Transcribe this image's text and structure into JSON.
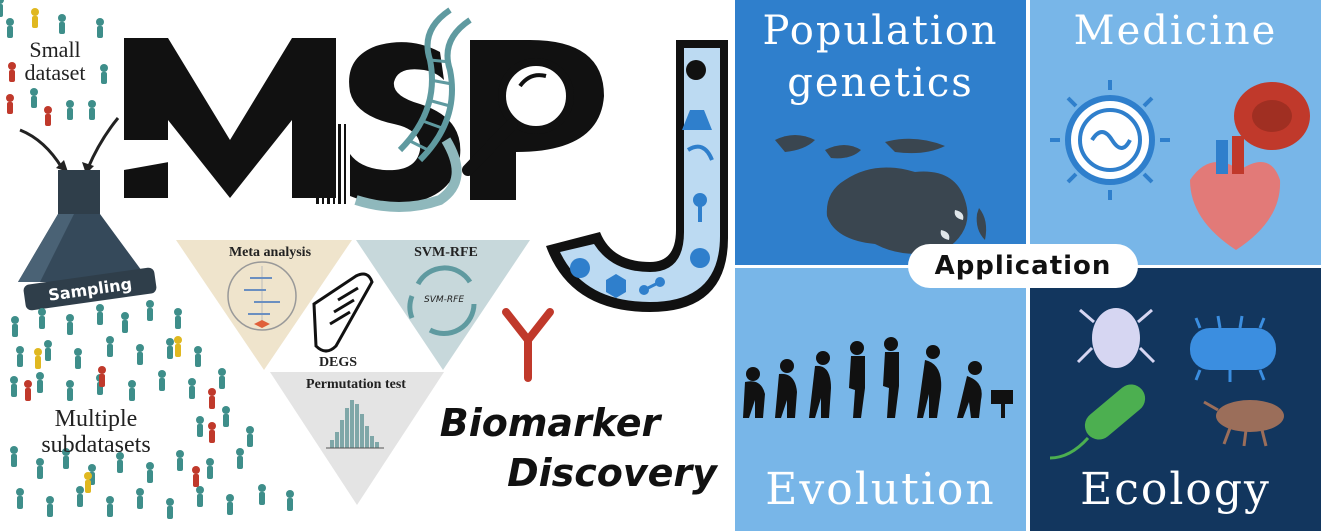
{
  "left": {
    "small_dataset": [
      "Small",
      "dataset"
    ],
    "sampling": "Sampling",
    "multiple_subdatasets": [
      "Multiple",
      "subdatasets"
    ]
  },
  "logo": {
    "letters": "MSPJ"
  },
  "methods": {
    "meta_analysis": "Meta analysis",
    "svm_rfe": "SVM-RFE",
    "svm_rfe_small": "SVM-RFE",
    "degs": "DEGS",
    "permutation_test": "Permutation test"
  },
  "biomarker": [
    "Biomarker",
    "Discovery"
  ],
  "application": {
    "center_label": "Application",
    "quadrants": [
      {
        "title": [
          "Population",
          "genetics"
        ]
      },
      {
        "title": [
          "Medicine"
        ]
      },
      {
        "title": [
          "Evolution"
        ]
      },
      {
        "title": [
          "Ecology"
        ]
      }
    ]
  },
  "colors": {
    "pop_bg": "#2f7fcc",
    "med_bg": "#78b6e8",
    "evo_bg": "#78b6e8",
    "eco_bg": "#12365e",
    "dark": "#111111",
    "teal": "#5f9aa0",
    "red": "#c0392b"
  }
}
